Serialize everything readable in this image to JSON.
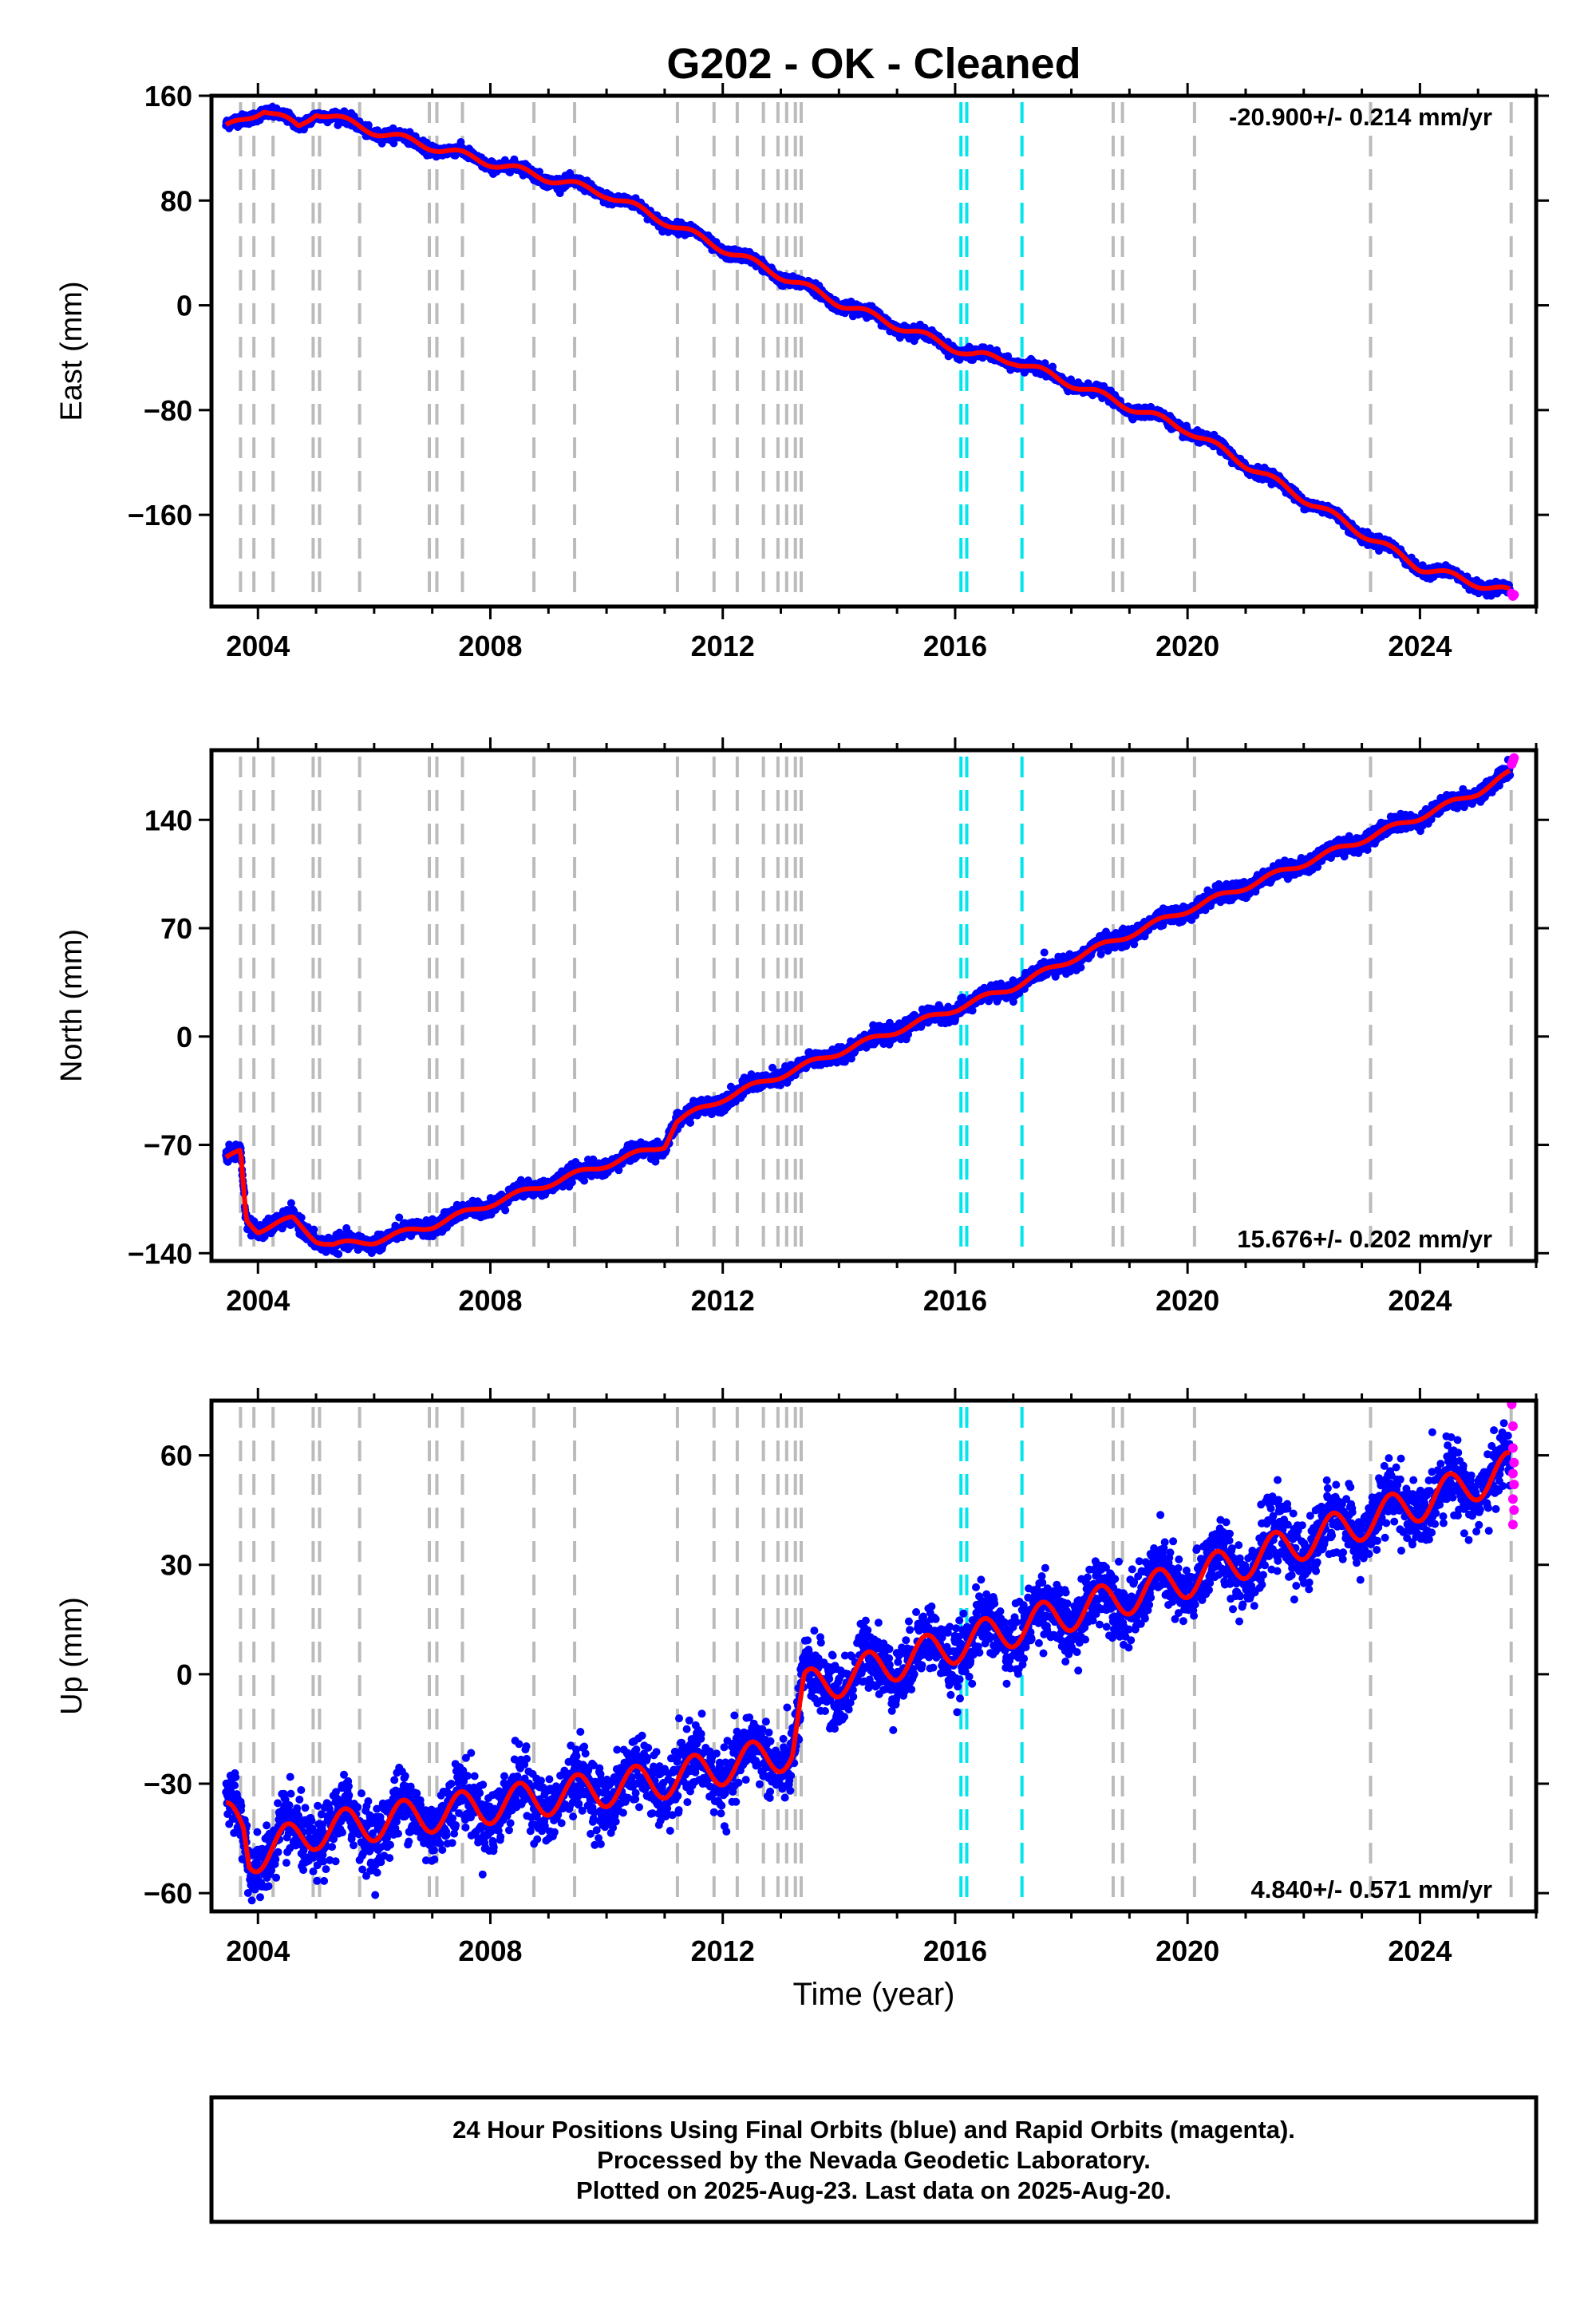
{
  "title": "G202  - OK - Cleaned",
  "xlabel": "Time (year)",
  "footer": {
    "line1": "24 Hour Positions Using Final Orbits (blue) and Rapid Orbits (magenta).",
    "line2": "Processed by the Nevada Geodetic Laboratory.",
    "line3": "Plotted on 2025-Aug-23. Last data on 2025-Aug-20."
  },
  "colors": {
    "final_orbits": "#0000ff",
    "rapid_orbits": "#ff00ff",
    "model": "#ff0000",
    "equipment_change": "#bbbbbb",
    "earthquake": "#00e5ee"
  },
  "chart_data": [
    {
      "type": "scatter",
      "ylabel": "East (mm)",
      "rate_label": "-20.900+/- 0.214 mm/yr",
      "xlim": [
        2003.2,
        2026.0
      ],
      "ylim": [
        -230,
        160
      ],
      "xticks": [
        "2004",
        "2008",
        "2012",
        "2016",
        "2020",
        "2024"
      ],
      "yticks": [
        "160",
        "80",
        "0",
        "−80",
        "−160"
      ],
      "ytick_values": [
        160,
        80,
        0,
        -80,
        -160
      ],
      "grid": false,
      "series": [
        {
          "name": "Final Orbits",
          "x_start": 2003.45,
          "x_end": 2025.55,
          "trend": [
            [
              2003.45,
              135
            ],
            [
              2004.1,
              150
            ],
            [
              2004.7,
              136
            ],
            [
              2005.0,
              148
            ],
            [
              2006.0,
              133
            ],
            [
              2010.0,
              85
            ],
            [
              2014.0,
              2
            ],
            [
              2016.3,
              -38
            ],
            [
              2017.0,
              -42
            ],
            [
              2020.0,
              -95
            ],
            [
              2024.0,
              -200
            ],
            [
              2025.6,
              -220
            ]
          ],
          "seasonal_mm": 3,
          "scatter_mm": 2
        },
        {
          "name": "Rapid Orbits",
          "points": [
            [
              2025.58,
              -220
            ],
            [
              2025.6,
              -222
            ],
            [
              2025.62,
              -221
            ]
          ]
        }
      ]
    },
    {
      "type": "scatter",
      "ylabel": "North (mm)",
      "rate_label": "15.676+/- 0.202 mm/yr",
      "xlim": [
        2003.2,
        2026.0
      ],
      "ylim": [
        -145,
        185
      ],
      "xticks": [
        "2004",
        "2008",
        "2012",
        "2016",
        "2020",
        "2024"
      ],
      "yticks": [
        "140",
        "70",
        "0",
        "−70",
        "−140"
      ],
      "ytick_values": [
        140,
        70,
        0,
        -70,
        -140
      ],
      "grid": false,
      "series": [
        {
          "name": "Final Orbits",
          "x_start": 2003.45,
          "x_end": 2025.55,
          "trend": [
            [
              2003.45,
              -80
            ],
            [
              2003.7,
              -74
            ],
            [
              2003.8,
              -118
            ],
            [
              2004.0,
              -125
            ],
            [
              2004.6,
              -118
            ],
            [
              2005.0,
              -131
            ],
            [
              2005.3,
              -135
            ],
            [
              2006.0,
              -132
            ],
            [
              2007.0,
              -122
            ],
            [
              2008.0,
              -108
            ],
            [
              2009.0,
              -95
            ],
            [
              2011.0,
              -70
            ],
            [
              2011.2,
              -55
            ],
            [
              2012.0,
              -40
            ],
            [
              2013.0,
              -25
            ],
            [
              2014.0,
              -10
            ],
            [
              2016.0,
              18
            ],
            [
              2017.0,
              32
            ],
            [
              2018.0,
              50
            ],
            [
              2020.0,
              82
            ],
            [
              2022.0,
              112
            ],
            [
              2024.0,
              142
            ],
            [
              2025.0,
              158
            ],
            [
              2025.55,
              170
            ]
          ],
          "seasonal_mm": 2,
          "scatter_mm": 2.5
        },
        {
          "name": "Rapid Orbits",
          "points": [
            [
              2025.58,
              176
            ],
            [
              2025.6,
              178
            ],
            [
              2025.62,
              180
            ]
          ]
        }
      ]
    },
    {
      "type": "scatter",
      "ylabel": "Up (mm)",
      "rate_label": "4.840+/- 0.571 mm/yr",
      "xlim": [
        2003.2,
        2026.0
      ],
      "ylim": [
        -65,
        75
      ],
      "xticks": [
        "2004",
        "2008",
        "2012",
        "2016",
        "2020",
        "2024"
      ],
      "yticks": [
        "60",
        "30",
        "0",
        "−30",
        "−60"
      ],
      "ytick_values": [
        60,
        30,
        0,
        -30,
        -60
      ],
      "grid": false,
      "series": [
        {
          "name": "Final Orbits",
          "x_start": 2003.45,
          "x_end": 2025.55,
          "trend": [
            [
              2003.45,
              -40
            ],
            [
              2003.75,
              -42
            ],
            [
              2003.85,
              -50
            ],
            [
              2005.0,
              -43
            ],
            [
              2008.0,
              -36
            ],
            [
              2011.0,
              -29
            ],
            [
              2013.2,
              -21
            ],
            [
              2013.4,
              -4
            ],
            [
              2016.0,
              8
            ],
            [
              2020.0,
              26
            ],
            [
              2024.0,
              47
            ],
            [
              2025.55,
              56
            ]
          ],
          "seasonal_mm": 5,
          "scatter_mm": 4.5
        },
        {
          "name": "Rapid Orbits",
          "points": [
            [
              2025.58,
              74
            ],
            [
              2025.6,
              68
            ],
            [
              2025.6,
              62
            ],
            [
              2025.62,
              58
            ],
            [
              2025.6,
              55
            ],
            [
              2025.62,
              52
            ],
            [
              2025.6,
              48
            ],
            [
              2025.62,
              45
            ],
            [
              2025.6,
              41
            ]
          ]
        }
      ]
    }
  ],
  "equipment_changes": [
    2003.7,
    2003.93,
    2004.26,
    2004.95,
    2005.06,
    2005.75,
    2006.95,
    2007.08,
    2007.52,
    2008.75,
    2009.45,
    2011.22,
    2011.85,
    2012.25,
    2012.7,
    2012.95,
    2013.1,
    2013.25,
    2013.35,
    2018.72,
    2018.88,
    2020.12,
    2023.15,
    2025.57
  ],
  "earthquakes": [
    2016.1,
    2016.2,
    2017.15
  ]
}
